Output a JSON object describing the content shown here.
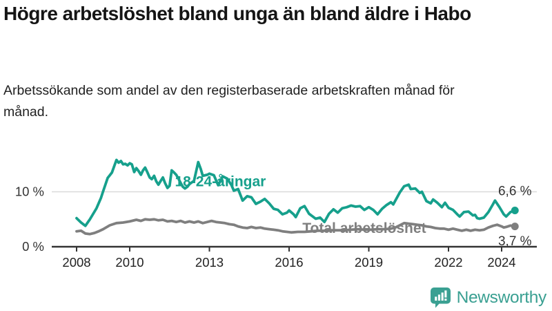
{
  "header": {
    "title": "Högre arbetslöshet bland unga än bland äldre i Habo",
    "subtitle": "Arbetssökande som andel av den registerbaserade arbetskraften månad för månad."
  },
  "chart_data": {
    "type": "line",
    "title": "Högre arbetslöshet bland unga än bland äldre i Habo",
    "unit": "%",
    "x_axis": {
      "label": "",
      "ticks": [
        2008,
        2010,
        2013,
        2016,
        2019,
        2022,
        2024
      ],
      "tick_labels": [
        "2008",
        "2010",
        "2013",
        "2016",
        "2019",
        "2022",
        "2024"
      ],
      "range": [
        2007.05,
        2025.3
      ]
    },
    "y_axis": {
      "label": "",
      "ticks": [
        0,
        10
      ],
      "tick_labels": [
        "0 %",
        "10 %"
      ],
      "range": [
        0,
        19.1
      ],
      "gridlines": [
        10
      ]
    },
    "legend_position": "inline-labels",
    "grid": "horizontal-only",
    "series": [
      {
        "name": "18-24-åringar",
        "color": "#16a08c",
        "end_value_label": "6,6 %",
        "end_value": 6.6,
        "points": [
          [
            2008.0,
            5.2
          ],
          [
            2008.17,
            4.4
          ],
          [
            2008.33,
            3.8
          ],
          [
            2008.5,
            5.0
          ],
          [
            2008.75,
            7.0
          ],
          [
            2008.92,
            8.9
          ],
          [
            2009.0,
            10.1
          ],
          [
            2009.17,
            12.5
          ],
          [
            2009.33,
            13.5
          ],
          [
            2009.5,
            15.8
          ],
          [
            2009.58,
            15.3
          ],
          [
            2009.67,
            15.6
          ],
          [
            2009.75,
            15.0
          ],
          [
            2009.83,
            15.1
          ],
          [
            2009.92,
            14.8
          ],
          [
            2010.0,
            15.2
          ],
          [
            2010.08,
            15.0
          ],
          [
            2010.17,
            13.6
          ],
          [
            2010.25,
            14.3
          ],
          [
            2010.33,
            13.8
          ],
          [
            2010.42,
            13.1
          ],
          [
            2010.5,
            13.9
          ],
          [
            2010.58,
            14.4
          ],
          [
            2010.67,
            13.5
          ],
          [
            2010.75,
            12.6
          ],
          [
            2010.83,
            12.3
          ],
          [
            2010.92,
            12.9
          ],
          [
            2011.0,
            11.9
          ],
          [
            2011.08,
            11.3
          ],
          [
            2011.17,
            12.0
          ],
          [
            2011.25,
            12.6
          ],
          [
            2011.33,
            11.6
          ],
          [
            2011.42,
            10.7
          ],
          [
            2011.5,
            11.1
          ],
          [
            2011.58,
            13.9
          ],
          [
            2011.67,
            13.5
          ],
          [
            2011.75,
            13.1
          ],
          [
            2011.83,
            12.4
          ],
          [
            2011.92,
            11.6
          ],
          [
            2012.0,
            10.9
          ],
          [
            2012.08,
            10.6
          ],
          [
            2012.17,
            10.9
          ],
          [
            2012.25,
            11.4
          ],
          [
            2012.42,
            12.0
          ],
          [
            2012.58,
            15.4
          ],
          [
            2012.67,
            14.2
          ],
          [
            2012.75,
            12.9
          ],
          [
            2012.92,
            13.1
          ],
          [
            2013.0,
            13.3
          ],
          [
            2013.17,
            13.0
          ],
          [
            2013.33,
            11.2
          ],
          [
            2013.5,
            12.8
          ],
          [
            2013.67,
            12.4
          ],
          [
            2013.83,
            11.2
          ],
          [
            2013.92,
            10.2
          ],
          [
            2014.08,
            10.5
          ],
          [
            2014.25,
            8.4
          ],
          [
            2014.42,
            9.2
          ],
          [
            2014.58,
            9.0
          ],
          [
            2014.75,
            7.8
          ],
          [
            2014.92,
            8.2
          ],
          [
            2015.08,
            8.7
          ],
          [
            2015.25,
            7.9
          ],
          [
            2015.42,
            6.9
          ],
          [
            2015.58,
            6.7
          ],
          [
            2015.75,
            5.9
          ],
          [
            2015.92,
            6.2
          ],
          [
            2016.0,
            6.6
          ],
          [
            2016.17,
            5.9
          ],
          [
            2016.25,
            5.4
          ],
          [
            2016.42,
            7.0
          ],
          [
            2016.58,
            7.4
          ],
          [
            2016.75,
            6.0
          ],
          [
            2016.92,
            5.4
          ],
          [
            2017.0,
            5.1
          ],
          [
            2017.17,
            5.3
          ],
          [
            2017.33,
            4.5
          ],
          [
            2017.5,
            6.0
          ],
          [
            2017.67,
            6.8
          ],
          [
            2017.83,
            6.2
          ],
          [
            2018.0,
            7.0
          ],
          [
            2018.17,
            7.2
          ],
          [
            2018.33,
            7.5
          ],
          [
            2018.5,
            7.3
          ],
          [
            2018.67,
            7.4
          ],
          [
            2018.83,
            6.7
          ],
          [
            2019.0,
            7.2
          ],
          [
            2019.17,
            6.7
          ],
          [
            2019.33,
            5.9
          ],
          [
            2019.5,
            6.9
          ],
          [
            2019.67,
            7.6
          ],
          [
            2019.83,
            8.1
          ],
          [
            2019.92,
            7.7
          ],
          [
            2020.0,
            8.4
          ],
          [
            2020.17,
            9.9
          ],
          [
            2020.33,
            11.0
          ],
          [
            2020.5,
            11.3
          ],
          [
            2020.58,
            10.5
          ],
          [
            2020.75,
            10.6
          ],
          [
            2020.92,
            9.8
          ],
          [
            2021.0,
            10.0
          ],
          [
            2021.08,
            9.2
          ],
          [
            2021.17,
            8.3
          ],
          [
            2021.33,
            7.9
          ],
          [
            2021.42,
            8.6
          ],
          [
            2021.58,
            8.0
          ],
          [
            2021.75,
            7.2
          ],
          [
            2021.87,
            8.0
          ],
          [
            2022.0,
            7.1
          ],
          [
            2022.17,
            6.7
          ],
          [
            2022.33,
            5.9
          ],
          [
            2022.42,
            5.5
          ],
          [
            2022.58,
            6.3
          ],
          [
            2022.75,
            6.4
          ],
          [
            2022.92,
            5.7
          ],
          [
            2023.0,
            5.8
          ],
          [
            2023.08,
            5.2
          ],
          [
            2023.17,
            5.1
          ],
          [
            2023.33,
            5.3
          ],
          [
            2023.5,
            6.3
          ],
          [
            2023.67,
            7.7
          ],
          [
            2023.75,
            8.4
          ],
          [
            2023.92,
            7.2
          ],
          [
            2024.08,
            5.9
          ],
          [
            2024.17,
            5.5
          ],
          [
            2024.33,
            6.3
          ],
          [
            2024.5,
            6.6
          ]
        ]
      },
      {
        "name": "Total arbetslöshet",
        "color": "#7f7f7f",
        "end_value_label": "3,7 %",
        "end_value": 3.7,
        "points": [
          [
            2008.0,
            2.8
          ],
          [
            2008.17,
            2.9
          ],
          [
            2008.33,
            2.4
          ],
          [
            2008.5,
            2.3
          ],
          [
            2008.67,
            2.5
          ],
          [
            2008.83,
            2.8
          ],
          [
            2009.0,
            3.2
          ],
          [
            2009.25,
            3.9
          ],
          [
            2009.5,
            4.3
          ],
          [
            2009.75,
            4.4
          ],
          [
            2010.0,
            4.6
          ],
          [
            2010.25,
            4.9
          ],
          [
            2010.42,
            4.7
          ],
          [
            2010.58,
            5.0
          ],
          [
            2010.75,
            4.9
          ],
          [
            2010.92,
            5.0
          ],
          [
            2011.08,
            4.8
          ],
          [
            2011.25,
            4.9
          ],
          [
            2011.42,
            4.6
          ],
          [
            2011.58,
            4.7
          ],
          [
            2011.75,
            4.5
          ],
          [
            2011.92,
            4.7
          ],
          [
            2012.08,
            4.4
          ],
          [
            2012.25,
            4.6
          ],
          [
            2012.42,
            4.4
          ],
          [
            2012.58,
            4.6
          ],
          [
            2012.75,
            4.3
          ],
          [
            2012.92,
            4.5
          ],
          [
            2013.08,
            4.7
          ],
          [
            2013.25,
            4.5
          ],
          [
            2013.42,
            4.4
          ],
          [
            2013.58,
            4.3
          ],
          [
            2013.75,
            4.1
          ],
          [
            2013.92,
            4.0
          ],
          [
            2014.08,
            3.7
          ],
          [
            2014.25,
            3.5
          ],
          [
            2014.42,
            3.4
          ],
          [
            2014.58,
            3.6
          ],
          [
            2014.75,
            3.4
          ],
          [
            2014.92,
            3.5
          ],
          [
            2015.08,
            3.3
          ],
          [
            2015.25,
            3.2
          ],
          [
            2015.42,
            3.1
          ],
          [
            2015.58,
            3.0
          ],
          [
            2015.75,
            2.8
          ],
          [
            2015.92,
            2.7
          ],
          [
            2016.08,
            2.6
          ],
          [
            2016.33,
            2.7
          ],
          [
            2016.58,
            2.7
          ],
          [
            2016.83,
            2.8
          ],
          [
            2017.08,
            2.9
          ],
          [
            2017.33,
            2.9
          ],
          [
            2017.58,
            3.0
          ],
          [
            2017.83,
            3.0
          ],
          [
            2018.08,
            3.0
          ],
          [
            2018.33,
            3.1
          ],
          [
            2018.58,
            3.2
          ],
          [
            2018.83,
            3.1
          ],
          [
            2019.08,
            3.1
          ],
          [
            2019.33,
            3.2
          ],
          [
            2019.58,
            3.2
          ],
          [
            2019.83,
            3.3
          ],
          [
            2020.0,
            3.5
          ],
          [
            2020.17,
            3.9
          ],
          [
            2020.33,
            4.3
          ],
          [
            2020.5,
            4.2
          ],
          [
            2020.67,
            4.1
          ],
          [
            2020.83,
            4.0
          ],
          [
            2021.0,
            3.9
          ],
          [
            2021.17,
            3.7
          ],
          [
            2021.33,
            3.6
          ],
          [
            2021.5,
            3.4
          ],
          [
            2021.67,
            3.3
          ],
          [
            2021.83,
            3.3
          ],
          [
            2022.0,
            3.1
          ],
          [
            2022.17,
            3.3
          ],
          [
            2022.33,
            3.1
          ],
          [
            2022.5,
            2.9
          ],
          [
            2022.67,
            3.1
          ],
          [
            2022.83,
            2.9
          ],
          [
            2023.0,
            3.1
          ],
          [
            2023.17,
            3.0
          ],
          [
            2023.33,
            3.1
          ],
          [
            2023.5,
            3.5
          ],
          [
            2023.67,
            3.8
          ],
          [
            2023.83,
            4.0
          ],
          [
            2024.0,
            3.7
          ],
          [
            2024.08,
            3.5
          ],
          [
            2024.17,
            3.6
          ],
          [
            2024.33,
            3.85
          ],
          [
            2024.5,
            3.7
          ]
        ]
      }
    ],
    "annotations": [
      {
        "role": "series-label",
        "series": 0,
        "text": "18-24-åringar",
        "x": 2011.7,
        "y": 11.0,
        "color": "#16a08c",
        "bold": true
      },
      {
        "role": "series-label",
        "series": 1,
        "text": "Total arbetslöshet",
        "x": 2016.5,
        "y": 2.5,
        "color": "#7f7f7f",
        "bold": true
      },
      {
        "role": "end-value-label",
        "series": 0,
        "text": "6,6 %",
        "x": 2023.87,
        "y": 9.4,
        "color": "#333333",
        "bold": false
      },
      {
        "role": "end-value-label",
        "series": 1,
        "text": "3,7 %",
        "x": 2023.87,
        "y": 0.25,
        "color": "#333333",
        "bold": false
      }
    ]
  },
  "footer": {
    "brand": "Newsworthy",
    "logo_icon": "newsworthy-speech-bubble-bar-chart-icon"
  },
  "colors": {
    "young_series": "#16a08c",
    "total_series": "#7f7f7f",
    "axis": "#333333",
    "gridline": "#d9d9d9",
    "text": "#151515",
    "brand_teal": "#3aa092"
  }
}
